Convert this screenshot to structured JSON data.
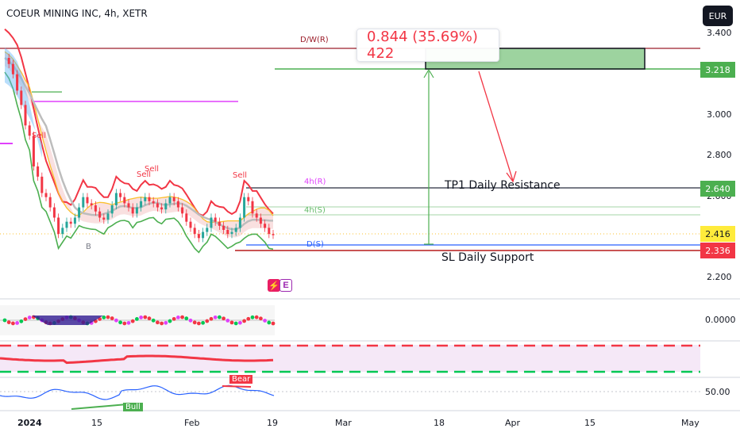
{
  "header": {
    "title": "COEUR MINING INC, 4h, XETR",
    "currency": "EUR"
  },
  "measure": {
    "text": "0.844 (35.69%) 422"
  },
  "price_axis": {
    "ticks": [
      "3.400",
      "3.000",
      "2.800",
      "2.600",
      "2.200"
    ],
    "badges": [
      {
        "value": "3.218",
        "bg": "#4caf50",
        "fg": "#ffffff"
      },
      {
        "value": "2.640",
        "bg": "#4caf50",
        "fg": "#ffffff"
      },
      {
        "value": "2.416",
        "bg": "#ffeb3b",
        "fg": "#131722"
      },
      {
        "value": "2.336",
        "bg": "#f23645",
        "fg": "#ffffff"
      }
    ]
  },
  "levels": {
    "dw": "D/W(R)",
    "h4r": "4h(R)",
    "h4s": "4h(S)",
    "ds": "D(S)"
  },
  "annotations": {
    "tp1": "TP1 Daily Resistance",
    "sl": "SL Daily Support",
    "sells": [
      "Sell",
      "Sell",
      "Sell",
      "Sell"
    ],
    "buy": "B"
  },
  "pane_icons": {
    "flash": "⚡",
    "e": "E"
  },
  "indicator1": {
    "value": "0.0000"
  },
  "indicator3": {
    "value": "50.00",
    "bear": "Bear",
    "bull": "Bull"
  },
  "time_axis": [
    "2024",
    "15",
    "Feb",
    "19",
    "Mar",
    "18",
    "Apr",
    "15",
    "May"
  ],
  "colors": {
    "red": "#f23645",
    "green": "#4caf50",
    "up": "#26a69a",
    "magenta": "#e040fb",
    "blue": "#2962ff"
  },
  "chart_data": {
    "type": "candlestick",
    "title": "COEUR MINING INC, 4h, XETR",
    "currency": "EUR",
    "ylim": [
      2.1,
      3.45
    ],
    "x_ticks": [
      "2024",
      "15",
      "Feb",
      "19",
      "Mar",
      "18",
      "Apr",
      "15",
      "May"
    ],
    "levels": [
      {
        "name": "D/W(R)",
        "value": 3.32
      },
      {
        "name": "TP1 Daily Resistance",
        "value": 3.218
      },
      {
        "name": "4h(R)",
        "value": 2.64
      },
      {
        "name": "4h(S)",
        "value": 2.56
      },
      {
        "name": "D(S)",
        "value": 2.36
      },
      {
        "name": "SL Daily Support",
        "value": 2.336
      }
    ],
    "last_price": 2.416,
    "closes": [
      3.28,
      3.25,
      3.2,
      3.12,
      3.05,
      2.95,
      2.9,
      2.75,
      2.7,
      2.62,
      2.6,
      2.55,
      2.5,
      2.42,
      2.45,
      2.48,
      2.47,
      2.5,
      2.55,
      2.6,
      2.57,
      2.56,
      2.53,
      2.5,
      2.49,
      2.52,
      2.56,
      2.62,
      2.6,
      2.57,
      2.55,
      2.52,
      2.55,
      2.58,
      2.6,
      2.58,
      2.57,
      2.55,
      2.54,
      2.57,
      2.6,
      2.58,
      2.55,
      2.52,
      2.48,
      2.45,
      2.42,
      2.4,
      2.43,
      2.45,
      2.5,
      2.48,
      2.46,
      2.44,
      2.42,
      2.43,
      2.45,
      2.5,
      2.6,
      2.58,
      2.52,
      2.5,
      2.47,
      2.45,
      2.42,
      2.416
    ]
  }
}
